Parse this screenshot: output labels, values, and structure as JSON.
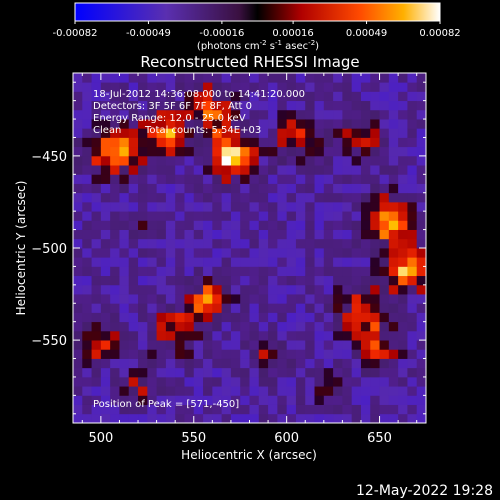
{
  "chart_data": {
    "type": "heatmap",
    "title": "Reconstructed RHESSI Image",
    "xlabel": "Heliocentric X (arcsec)",
    "ylabel": "Heliocentric Y (arcsec)",
    "xlim": [
      485,
      675
    ],
    "ylim": [
      -595,
      -405
    ],
    "x_ticks": [
      500,
      550,
      600,
      650
    ],
    "y_ticks": [
      -450,
      -500,
      -550
    ],
    "colorbar": {
      "range": [
        -0.00082,
        0.00082
      ],
      "tick_values": [
        -0.00082,
        -0.00049,
        -0.00016,
        0.00016,
        0.00049,
        0.00082
      ],
      "tick_labels": [
        "-0.00082",
        "-0.00049",
        "-0.00016",
        "0.00016",
        "0.00049",
        "0.00082"
      ],
      "unit_main": "(photons cm",
      "unit_exp1": "-2",
      "unit_mid": " s",
      "unit_exp2": "-1",
      "unit_end": " asec",
      "unit_exp3": "-2",
      "unit_close": ")"
    },
    "annotations": {
      "line1": "18-Jul-2012 14:36:08.000 to 14:41:20.000",
      "line2": "Detectors: 3F 5F 6F 7F 8F, Att 0",
      "line3": "Energy Range: 12.0 - 25.0 keV",
      "line4a": "Clean",
      "line4b": "Total counts: 5.54E+03",
      "peak": "Position of Peak = [571,-450]"
    },
    "bright_regions": [
      {
        "x": 508,
        "y": -447,
        "r": 14,
        "value": 0.0007
      },
      {
        "x": 535,
        "y": -438,
        "r": 12,
        "value": 0.00065
      },
      {
        "x": 571,
        "y": -450,
        "r": 12,
        "value": 0.00082
      },
      {
        "x": 560,
        "y": -425,
        "r": 14,
        "value": 0.0005
      },
      {
        "x": 605,
        "y": -440,
        "r": 12,
        "value": 0.00045
      },
      {
        "x": 640,
        "y": -440,
        "r": 12,
        "value": 0.0004
      },
      {
        "x": 655,
        "y": -485,
        "r": 13,
        "value": 0.0007
      },
      {
        "x": 665,
        "y": -512,
        "r": 12,
        "value": 0.00075
      },
      {
        "x": 640,
        "y": -535,
        "r": 13,
        "value": 0.0006
      },
      {
        "x": 650,
        "y": -555,
        "r": 11,
        "value": 0.0004
      },
      {
        "x": 558,
        "y": -528,
        "r": 11,
        "value": 0.0006
      },
      {
        "x": 540,
        "y": -545,
        "r": 13,
        "value": 0.0005
      },
      {
        "x": 500,
        "y": -552,
        "r": 11,
        "value": 0.00045
      },
      {
        "x": 520,
        "y": -575,
        "r": 10,
        "value": 0.0003
      },
      {
        "x": 590,
        "y": -560,
        "r": 10,
        "value": 0.0003
      },
      {
        "x": 525,
        "y": -490,
        "r": 8,
        "value": 0.00025
      },
      {
        "x": 620,
        "y": -575,
        "r": 9,
        "value": 0.0003
      }
    ]
  },
  "footer": {
    "date": "12-May-2022 19:28"
  }
}
